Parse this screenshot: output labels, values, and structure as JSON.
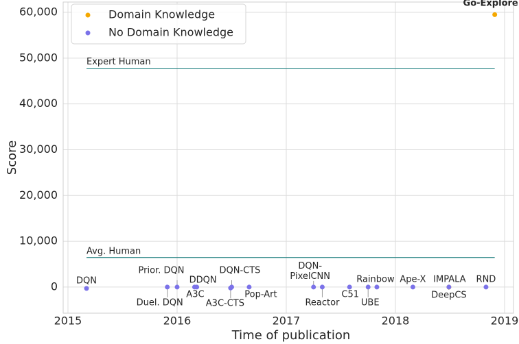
{
  "chart_data": {
    "type": "scatter",
    "xlabel": "Time of publication",
    "ylabel": "Score",
    "xlim": [
      2014.956,
      2019.082
    ],
    "ylim": [
      -5700,
      62250
    ],
    "xticks": [
      2015,
      2016,
      2017,
      2018,
      2019
    ],
    "yticks": [
      0,
      {
        "value": 10000,
        "label": "10,000"
      },
      {
        "value": 20000,
        "label": "20,000"
      },
      {
        "value": 30000,
        "label": "30,000"
      },
      {
        "value": 40000,
        "label": "40,000"
      },
      {
        "value": 50000,
        "label": "50,000"
      },
      {
        "value": 60000,
        "label": "60,000"
      }
    ],
    "grid": true,
    "legend": "upper left",
    "reference_lines": [
      {
        "label": "Expert Human",
        "value": 47800,
        "x": [
          2015.17,
          2018.91
        ],
        "color": "#1f7f7f"
      },
      {
        "label": "Avg. Human",
        "value": 6460,
        "x": [
          2015.17,
          2018.91
        ],
        "color": "#1f7f7f"
      }
    ],
    "series": [
      {
        "name": "Domain Knowledge",
        "color": "#f5a800",
        "x": [
          2018.49,
          2018.91
        ],
        "values": [
          0,
          59500
        ],
        "labels": [
          "DeepCS",
          "Go-Explore"
        ]
      },
      {
        "name": "No Domain Knowledge",
        "color": "#7b72e9",
        "x": [
          2015.17,
          2015.91,
          2016.0,
          2016.18,
          2016.16,
          2016.5,
          2016.49,
          2016.66,
          2017.25,
          2017.33,
          2017.58,
          2017.75,
          2017.83,
          2018.16,
          2018.49,
          2018.83
        ],
        "values": [
          -290,
          0,
          0,
          0,
          0,
          0,
          -200,
          0,
          0,
          0,
          0,
          0,
          0,
          0,
          0,
          0
        ],
        "labels": [
          "DQN",
          "Duel. DQN",
          "Prior. DQN",
          "DDQN",
          "A3C",
          "DQN-CTS",
          "A3C-CTS",
          "Pop-Art",
          "DQN-\nPixelCNN",
          "Reactor",
          "C51",
          "UBE",
          "Rainbow",
          "Ape-X",
          "IMPALA",
          "RND"
        ]
      }
    ]
  }
}
